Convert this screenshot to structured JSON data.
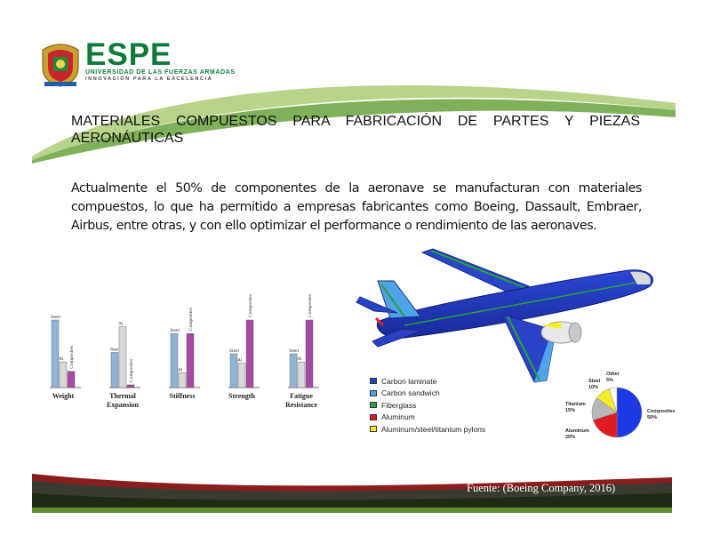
{
  "header": {
    "brand": "ESPE",
    "university": "UNIVERSIDAD DE LAS FUERZAS ARMADAS",
    "motto": "INNOVACIÓN PARA LA EXCELENCIA"
  },
  "slide": {
    "title": "MATERIALES COMPUESTOS PARA FABRICACIÓN DE PARTES Y PIEZAS AERONÁUTICAS",
    "body": "Actualmente el 50% de componentes de la aeronave se manufacturan con materiales compuestos, lo que ha permitido a empresas fabricantes como Boeing, Dassault, Embraer, Airbus, entre otras, y con ello optimizar el performance o rendimiento de las aeronaves.",
    "source": "Fuente: (Boeing Company, 2016)"
  },
  "colors": {
    "brand_green": "#0d7a3a",
    "steel_bar": "#8fb4d8",
    "al_bar": "#d9d9d9",
    "composites_bar": "#a54aa6",
    "carbon_laminate": "#1f3fbf",
    "carbon_sandwich": "#4fa3e8",
    "fiberglass": "#27a33a",
    "aluminum": "#e21d24",
    "aluminum_steel_titanium": "#f5ec27",
    "pie_composites": "#1d39e6",
    "pie_aluminum": "#e01b22",
    "pie_titanium": "#b8b8b8",
    "pie_steel": "#f3ee2c",
    "pie_other": "#ffffff"
  },
  "chart_data": [
    {
      "type": "bar",
      "categories": [
        "Weight",
        "Thermal Expansion",
        "Stiffness",
        "Strength",
        "Fatigue Resistance"
      ],
      "series": [
        {
          "name": "Steel",
          "values": [
            100,
            52,
            80,
            50,
            50
          ]
        },
        {
          "name": "Al",
          "values": [
            38,
            90,
            22,
            36,
            38
          ]
        },
        {
          "name": "Composites",
          "values": [
            24,
            4,
            80,
            100,
            100
          ]
        }
      ],
      "ylim": [
        0,
        100
      ],
      "grid": false
    },
    {
      "type": "pie",
      "categories": [
        "Composites",
        "Aluminum",
        "Titanium",
        "Steel",
        "Other"
      ],
      "labels": [
        "Composites 50%",
        "Aluminum 20%",
        "Titanium 15%",
        "Steel 10%",
        "Other 5%"
      ],
      "values": [
        50,
        20,
        15,
        10,
        5
      ],
      "legend": [
        {
          "label": "Carbon laminate",
          "color": "#1f3fbf"
        },
        {
          "label": "Carbon sandwich",
          "color": "#4fa3e8"
        },
        {
          "label": "Fiberglass",
          "color": "#27a33a"
        },
        {
          "label": "Aluminum",
          "color": "#e21d24"
        },
        {
          "label": "Aluminum/steel/titanium pylons",
          "color": "#f5ec27"
        }
      ],
      "legend_position": "left"
    }
  ]
}
